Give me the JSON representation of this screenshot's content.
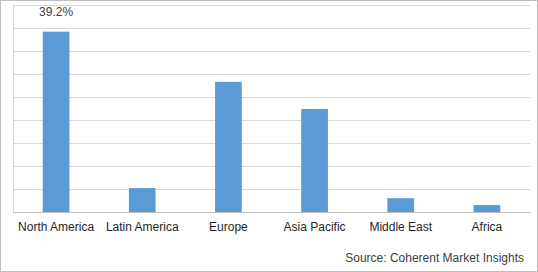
{
  "chart_data": {
    "type": "bar",
    "categories": [
      "North America",
      "Latin America",
      "Europe",
      "Asia Pacific",
      "Middle East",
      "Africa"
    ],
    "values": [
      39.2,
      5.2,
      28.3,
      22.4,
      3.0,
      1.5
    ],
    "value_labels": [
      "39.2%",
      null,
      null,
      null,
      null,
      null
    ],
    "data_labels": true,
    "color": "#5b9bd5",
    "ylim": [
      0,
      45
    ],
    "yticks": [
      0,
      5,
      10,
      15,
      20,
      25,
      30,
      35,
      40,
      45
    ],
    "grid": true,
    "tick_labels": "x",
    "source": "Source: Coherent Market Insights"
  }
}
